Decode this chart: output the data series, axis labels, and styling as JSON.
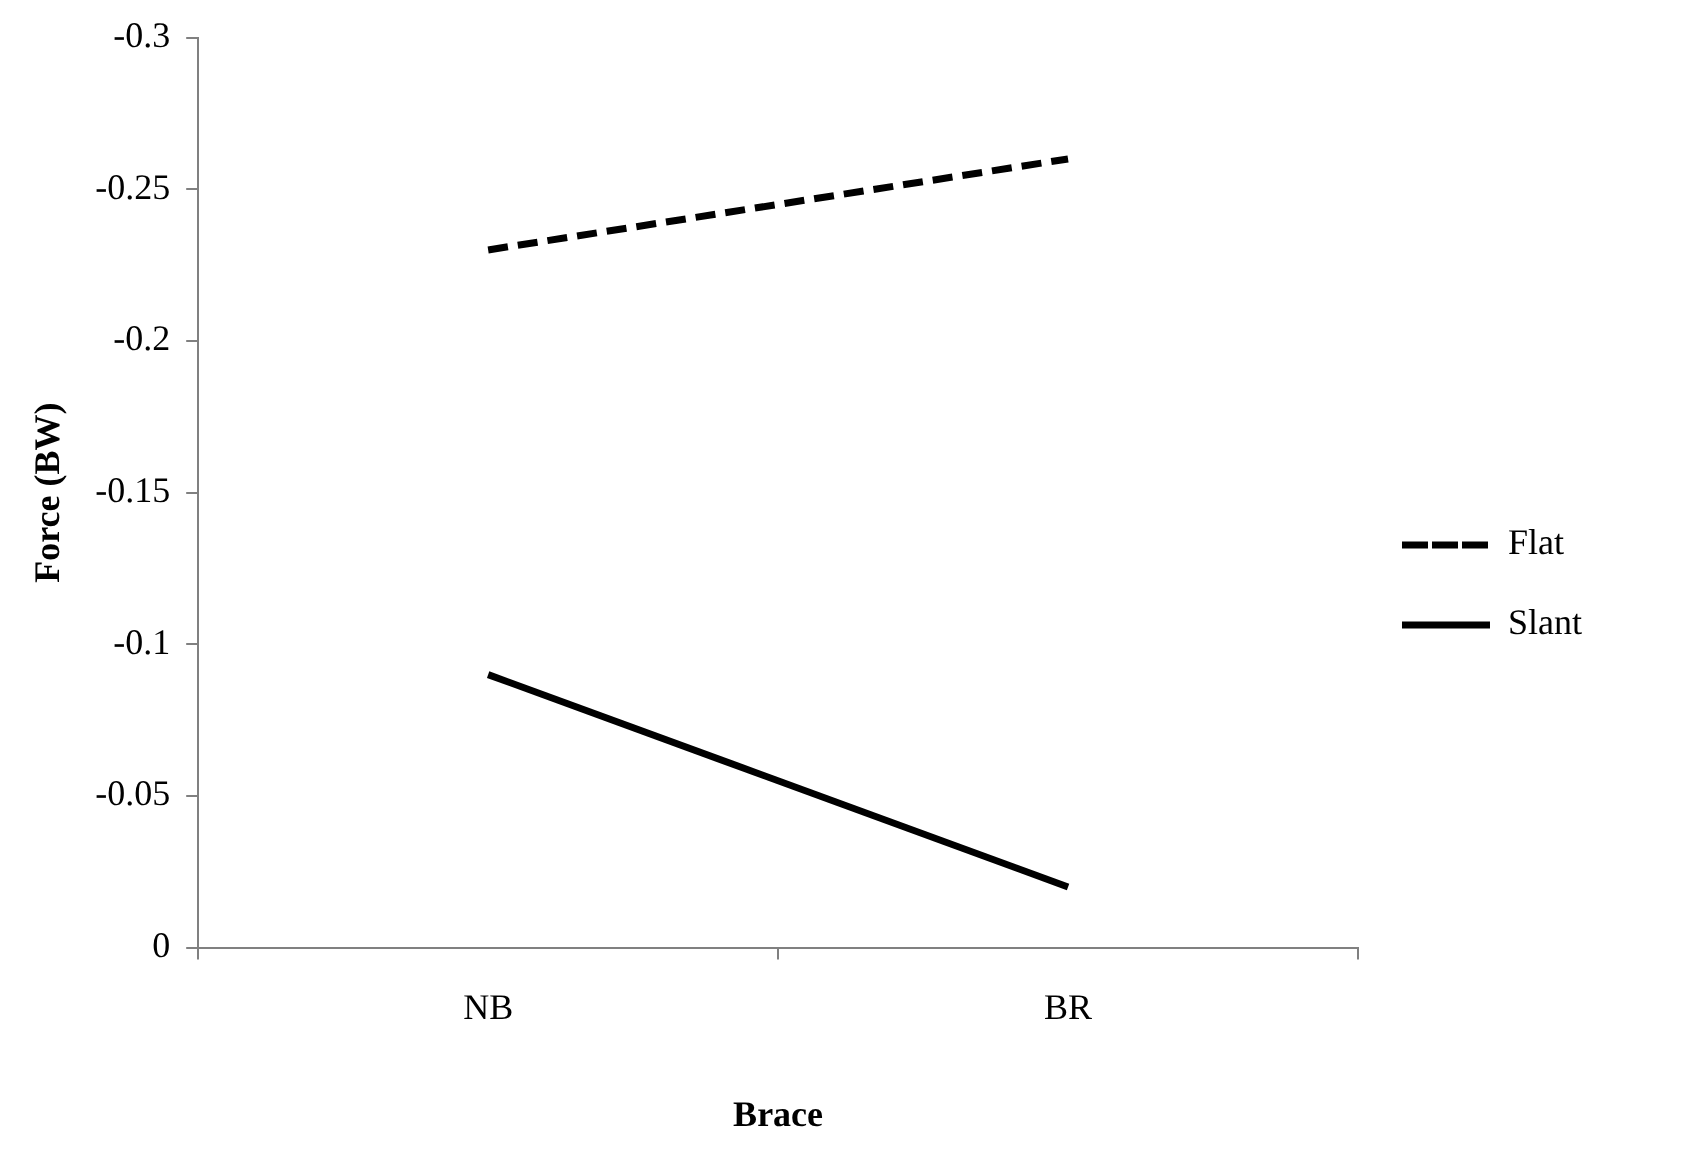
{
  "chart_data": {
    "type": "line",
    "xlabel": "Brace",
    "ylabel": "Force (BW)",
    "categories": [
      "NB",
      "BR"
    ],
    "series": [
      {
        "name": "Flat",
        "color": "#000000",
        "line_style": "dashed",
        "values": [
          -0.23,
          -0.26
        ]
      },
      {
        "name": "Slant",
        "color": "#000000",
        "line_style": "solid",
        "values": [
          -0.09,
          -0.02
        ]
      }
    ],
    "ylim": [
      0,
      -0.3
    ],
    "yticks": [
      0,
      -0.05,
      -0.1,
      -0.15,
      -0.2,
      -0.25,
      -0.3
    ],
    "grid": false,
    "legend": "right",
    "marker": "none"
  }
}
